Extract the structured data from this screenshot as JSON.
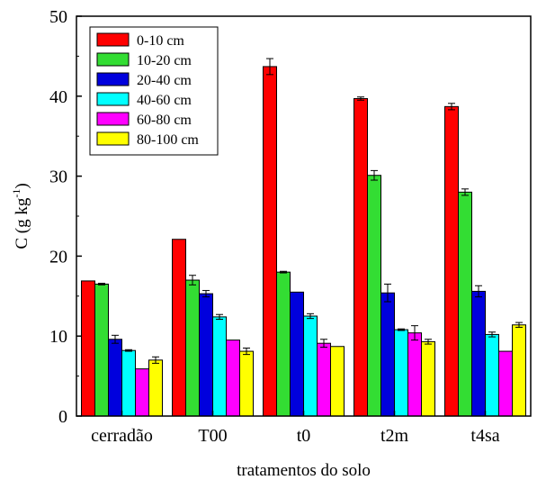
{
  "chart_data": {
    "type": "bar",
    "xlabel": "tratamentos do solo",
    "ylabel_main": "C (g kg",
    "ylabel_sup": "-1",
    "ylabel_close": ")",
    "ylim": [
      0,
      50
    ],
    "yticks": [
      0,
      10,
      20,
      30,
      40,
      50
    ],
    "categories": [
      "cerradão",
      "T00",
      "t0",
      "t2m",
      "t4sa"
    ],
    "legend_position": "top-left",
    "grid": false,
    "series": [
      {
        "name": "0-10 cm",
        "color": "#ff0000",
        "values": [
          16.9,
          22.1,
          43.7,
          39.7,
          38.7
        ],
        "errors": [
          0.0,
          0.0,
          1.0,
          0.2,
          0.4
        ]
      },
      {
        "name": "10-20 cm",
        "color": "#33dd33",
        "values": [
          16.5,
          17.0,
          18.0,
          30.1,
          28.0
        ],
        "errors": [
          0.1,
          0.6,
          0.1,
          0.6,
          0.4
        ]
      },
      {
        "name": "20-40 cm",
        "color": "#0000dd",
        "values": [
          9.6,
          15.3,
          15.5,
          15.4,
          15.6
        ],
        "errors": [
          0.5,
          0.4,
          0.0,
          1.1,
          0.7
        ]
      },
      {
        "name": "40-60 cm",
        "color": "#00ffff",
        "values": [
          8.2,
          12.4,
          12.5,
          10.8,
          10.2
        ],
        "errors": [
          0.1,
          0.3,
          0.3,
          0.1,
          0.3
        ]
      },
      {
        "name": "60-80 cm",
        "color": "#ff00ff",
        "values": [
          5.9,
          9.5,
          9.1,
          10.4,
          8.1
        ],
        "errors": [
          0.0,
          0.0,
          0.5,
          0.9,
          0.0
        ]
      },
      {
        "name": "80-100 cm",
        "color": "#ffff00",
        "values": [
          7.0,
          8.1,
          8.7,
          9.3,
          11.4
        ],
        "errors": [
          0.4,
          0.4,
          0.0,
          0.3,
          0.3
        ]
      }
    ]
  }
}
